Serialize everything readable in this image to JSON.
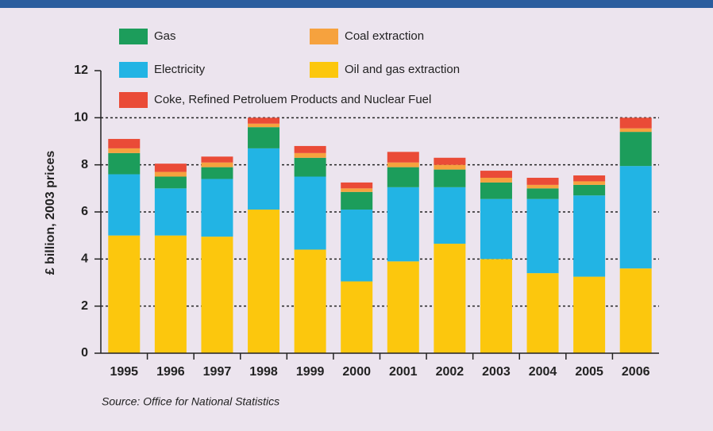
{
  "chart_data": {
    "type": "stacked_bar",
    "ylabel": "£ billion, 2003 prices",
    "source": "Source: Office for National Statistics",
    "categories": [
      "1995",
      "1996",
      "1997",
      "1998",
      "1999",
      "2000",
      "2001",
      "2002",
      "2003",
      "2004",
      "2005",
      "2006"
    ],
    "series": [
      {
        "name": "Oil and gas extraction",
        "color": "#fcc70d",
        "values": [
          5.0,
          5.0,
          4.95,
          6.1,
          4.4,
          3.05,
          3.9,
          4.65,
          4.0,
          3.4,
          3.25,
          3.6
        ]
      },
      {
        "name": "Electricity",
        "color": "#22b4e4",
        "values": [
          2.6,
          2.0,
          2.45,
          2.6,
          3.1,
          3.05,
          3.15,
          2.4,
          2.55,
          3.15,
          3.45,
          4.35
        ]
      },
      {
        "name": "Gas",
        "color": "#1c9d5b",
        "values": [
          0.9,
          0.5,
          0.5,
          0.9,
          0.8,
          0.75,
          0.85,
          0.75,
          0.7,
          0.45,
          0.45,
          1.45
        ]
      },
      {
        "name": "Coal extraction",
        "color": "#f6a23e",
        "values": [
          0.2,
          0.2,
          0.2,
          0.15,
          0.2,
          0.15,
          0.2,
          0.2,
          0.2,
          0.15,
          0.15,
          0.15
        ]
      },
      {
        "name": "Coke, Refined Petroluem Products and Nuclear Fuel",
        "color": "#ea4b37",
        "values": [
          0.4,
          0.35,
          0.25,
          0.25,
          0.3,
          0.25,
          0.45,
          0.3,
          0.3,
          0.3,
          0.25,
          0.45
        ]
      }
    ],
    "ylim": [
      0,
      12
    ],
    "yticks": [
      0,
      2,
      4,
      6,
      8,
      10,
      12
    ],
    "grid": true
  }
}
